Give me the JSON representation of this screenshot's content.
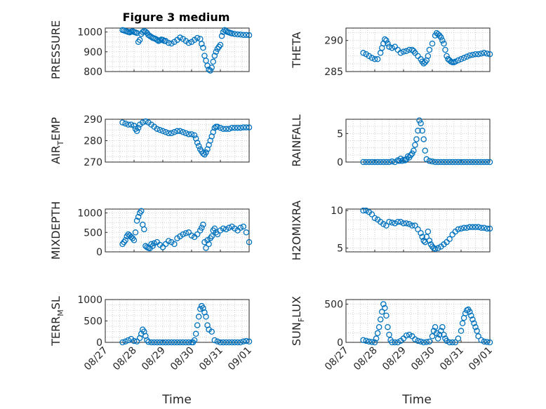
{
  "chart_data": [
    {
      "type": "scatter",
      "id": "pressure",
      "title": "Figure 3 medium",
      "ylabel": "PRESSURE",
      "ylim": [
        800,
        1020
      ],
      "yticks": [
        800,
        900,
        1000
      ],
      "x": [
        0.6,
        0.65,
        0.7,
        0.75,
        0.8,
        0.85,
        0.9,
        0.95,
        1.0,
        1.05,
        1.1,
        1.15,
        1.2,
        1.25,
        1.3,
        1.35,
        1.4,
        1.45,
        1.5,
        1.55,
        1.6,
        1.65,
        1.7,
        1.75,
        1.8,
        1.85,
        1.9,
        1.95,
        2.0,
        2.05,
        2.1,
        2.2,
        2.3,
        2.4,
        2.5,
        2.6,
        2.7,
        2.8,
        2.9,
        3.0,
        3.1,
        3.2,
        3.3,
        3.35,
        3.4,
        3.45,
        3.5,
        3.55,
        3.6,
        3.65,
        3.7,
        3.75,
        3.8,
        3.85,
        3.9,
        3.95,
        4.0,
        4.05,
        4.1,
        4.15,
        4.2,
        4.25,
        4.3,
        4.35,
        4.4,
        4.5,
        4.6,
        4.7,
        4.8,
        4.9,
        5.0
      ],
      "y": [
        1010,
        1008,
        1005,
        1003,
        1000,
        998,
        1002,
        1004,
        1000,
        998,
        995,
        950,
        960,
        990,
        1000,
        1005,
        1002,
        995,
        985,
        980,
        975,
        970,
        968,
        965,
        960,
        955,
        958,
        962,
        960,
        955,
        955,
        945,
        942,
        950,
        960,
        972,
        965,
        955,
        945,
        950,
        960,
        970,
        965,
        940,
        920,
        880,
        855,
        830,
        810,
        805,
        820,
        850,
        880,
        900,
        915,
        925,
        935,
        980,
        1000,
        1010,
        1005,
        1000,
        998,
        995,
        993,
        990,
        988,
        987,
        985,
        985,
        984
      ]
    },
    {
      "type": "scatter",
      "id": "theta",
      "ylabel": "THETA",
      "ylim": [
        285,
        292
      ],
      "yticks": [
        285,
        290
      ],
      "x": [
        0.6,
        0.7,
        0.8,
        0.9,
        1.0,
        1.1,
        1.2,
        1.25,
        1.3,
        1.35,
        1.4,
        1.45,
        1.5,
        1.6,
        1.7,
        1.8,
        1.9,
        2.0,
        2.1,
        2.2,
        2.3,
        2.35,
        2.4,
        2.5,
        2.6,
        2.65,
        2.7,
        2.75,
        2.8,
        2.85,
        2.9,
        3.0,
        3.1,
        3.15,
        3.2,
        3.25,
        3.3,
        3.35,
        3.4,
        3.45,
        3.5,
        3.55,
        3.6,
        3.65,
        3.7,
        3.75,
        3.8,
        3.9,
        4.0,
        4.1,
        4.2,
        4.3,
        4.4,
        4.5,
        4.6,
        4.7,
        4.8,
        4.9,
        5.0
      ],
      "y": [
        288.0,
        287.8,
        287.5,
        287.2,
        287.0,
        287.0,
        288.0,
        288.8,
        289.5,
        290.2,
        290.0,
        289.5,
        289.0,
        288.8,
        289.0,
        288.5,
        288.0,
        288.2,
        288.3,
        288.5,
        288.5,
        288.3,
        288.0,
        287.5,
        287.0,
        286.6,
        286.3,
        286.5,
        286.8,
        287.5,
        288.5,
        289.5,
        290.8,
        291.2,
        291.0,
        290.8,
        290.5,
        290.0,
        289.5,
        288.5,
        287.5,
        287.0,
        286.8,
        286.6,
        286.5,
        286.5,
        286.6,
        286.8,
        287.0,
        287.2,
        287.4,
        287.6,
        287.7,
        287.8,
        287.8,
        287.9,
        288.0,
        287.9,
        287.8
      ]
    },
    {
      "type": "scatter",
      "id": "air_temp",
      "ylabel": "AIR_TEMP",
      "ylim": [
        270,
        290
      ],
      "yticks": [
        270,
        280,
        290
      ],
      "x": [
        0.6,
        0.7,
        0.8,
        0.9,
        1.0,
        1.05,
        1.1,
        1.15,
        1.2,
        1.3,
        1.4,
        1.5,
        1.6,
        1.7,
        1.8,
        1.9,
        2.0,
        2.1,
        2.2,
        2.3,
        2.4,
        2.5,
        2.6,
        2.7,
        2.8,
        2.9,
        3.0,
        3.1,
        3.15,
        3.2,
        3.25,
        3.3,
        3.35,
        3.4,
        3.45,
        3.5,
        3.55,
        3.6,
        3.65,
        3.7,
        3.75,
        3.8,
        3.85,
        3.9,
        4.0,
        4.1,
        4.2,
        4.3,
        4.4,
        4.5,
        4.6,
        4.7,
        4.8,
        4.9,
        5.0
      ],
      "y": [
        288.5,
        288.0,
        287.5,
        287.5,
        287.0,
        285.5,
        284.5,
        286.0,
        287.5,
        288.5,
        289.0,
        288.5,
        287.5,
        286.5,
        285.5,
        285.0,
        284.5,
        284.0,
        283.5,
        283.5,
        284.0,
        284.5,
        284.5,
        284.0,
        283.5,
        283.0,
        283.0,
        282.5,
        281.0,
        279.0,
        277.5,
        276.0,
        275.0,
        274.0,
        273.5,
        274.5,
        276.0,
        278.0,
        280.0,
        282.0,
        284.0,
        286.0,
        286.5,
        286.5,
        286.0,
        285.5,
        285.5,
        285.5,
        286.0,
        286.0,
        286.0,
        286.0,
        286.2,
        286.2,
        286.2
      ]
    },
    {
      "type": "scatter",
      "id": "rainfall",
      "ylabel": "RAINFALL",
      "ylim": [
        0,
        7.5
      ],
      "yticks": [
        0,
        5
      ],
      "x": [
        0.6,
        0.7,
        0.8,
        0.9,
        1.0,
        1.1,
        1.2,
        1.3,
        1.4,
        1.5,
        1.6,
        1.7,
        1.8,
        1.85,
        1.9,
        1.95,
        2.0,
        2.05,
        2.1,
        2.15,
        2.2,
        2.25,
        2.3,
        2.35,
        2.4,
        2.45,
        2.5,
        2.55,
        2.6,
        2.65,
        2.7,
        2.75,
        2.8,
        2.9,
        3.0,
        3.1,
        3.2,
        3.3,
        3.4,
        3.5,
        3.6,
        3.7,
        3.8,
        3.9,
        4.0,
        4.1,
        4.2,
        4.3,
        4.4,
        4.5,
        4.6,
        4.7,
        4.8,
        4.9,
        5.0
      ],
      "y": [
        0,
        0,
        0,
        0,
        0,
        0,
        0,
        0,
        0,
        0,
        0.1,
        0,
        0.3,
        0.2,
        0.6,
        0.2,
        0.4,
        0.3,
        0.5,
        1.0,
        0.8,
        1.2,
        1.5,
        2.0,
        3.0,
        4.0,
        5.5,
        7.3,
        6.8,
        5.5,
        4.0,
        2.0,
        0.5,
        0.2,
        0.1,
        0,
        0,
        0,
        0,
        0,
        0,
        0,
        0,
        0,
        0,
        0,
        0,
        0,
        0,
        0,
        0,
        0,
        0,
        0,
        0
      ]
    },
    {
      "type": "scatter",
      "id": "mixdepth",
      "ylabel": "MIXDEPTH",
      "ylim": [
        0,
        1100
      ],
      "yticks": [
        0,
        500,
        1000
      ],
      "x": [
        0.6,
        0.65,
        0.7,
        0.75,
        0.8,
        0.85,
        0.9,
        0.95,
        1.0,
        1.05,
        1.1,
        1.15,
        1.2,
        1.25,
        1.3,
        1.35,
        1.4,
        1.45,
        1.5,
        1.55,
        1.6,
        1.65,
        1.7,
        1.8,
        1.9,
        2.0,
        2.1,
        2.2,
        2.3,
        2.4,
        2.5,
        2.6,
        2.7,
        2.8,
        2.9,
        3.0,
        3.1,
        3.2,
        3.3,
        3.35,
        3.4,
        3.45,
        3.5,
        3.55,
        3.6,
        3.65,
        3.7,
        3.75,
        3.8,
        3.85,
        3.9,
        4.0,
        4.1,
        4.2,
        4.3,
        4.4,
        4.5,
        4.6,
        4.7,
        4.8,
        4.9,
        5.0
      ],
      "y": [
        200,
        250,
        300,
        400,
        450,
        420,
        380,
        350,
        300,
        500,
        800,
        900,
        1000,
        1050,
        700,
        580,
        150,
        120,
        100,
        90,
        200,
        150,
        220,
        250,
        180,
        120,
        200,
        280,
        250,
        200,
        350,
        400,
        450,
        480,
        500,
        420,
        380,
        450,
        550,
        620,
        700,
        250,
        100,
        300,
        200,
        350,
        400,
        550,
        600,
        500,
        450,
        550,
        600,
        580,
        620,
        650,
        600,
        550,
        620,
        650,
        500,
        250
      ]
    },
    {
      "type": "scatter",
      "id": "h2omixra",
      "ylabel": "H2OMIXRA",
      "ylim": [
        4.5,
        10.2
      ],
      "yticks": [
        5,
        10
      ],
      "x": [
        0.6,
        0.7,
        0.8,
        0.9,
        1.0,
        1.1,
        1.2,
        1.3,
        1.4,
        1.5,
        1.6,
        1.7,
        1.8,
        1.9,
        2.0,
        2.1,
        2.2,
        2.3,
        2.4,
        2.5,
        2.6,
        2.65,
        2.7,
        2.75,
        2.8,
        2.85,
        2.9,
        2.95,
        3.0,
        3.05,
        3.1,
        3.2,
        3.3,
        3.4,
        3.5,
        3.6,
        3.7,
        3.8,
        3.9,
        4.0,
        4.1,
        4.2,
        4.3,
        4.4,
        4.5,
        4.6,
        4.7,
        4.8,
        4.9,
        5.0
      ],
      "y": [
        10.0,
        10.0,
        9.8,
        9.5,
        9.0,
        8.8,
        8.5,
        8.2,
        8.0,
        8.5,
        8.4,
        8.3,
        8.5,
        8.5,
        8.3,
        8.3,
        8.2,
        8.0,
        8.0,
        7.5,
        7.0,
        6.5,
        6.0,
        5.8,
        6.5,
        7.2,
        6.0,
        5.5,
        5.2,
        5.0,
        4.9,
        5.0,
        5.2,
        5.5,
        5.8,
        6.2,
        6.8,
        7.2,
        7.5,
        7.6,
        7.7,
        7.7,
        7.8,
        7.8,
        7.8,
        7.8,
        7.7,
        7.7,
        7.6,
        7.6
      ]
    },
    {
      "type": "scatter",
      "id": "terr_msl",
      "ylabel": "TERR_MSL",
      "ylim": [
        0,
        1000
      ],
      "yticks": [
        0,
        500,
        1000
      ],
      "x": [
        0.6,
        0.7,
        0.8,
        0.9,
        1.0,
        1.1,
        1.2,
        1.25,
        1.3,
        1.35,
        1.4,
        1.45,
        1.5,
        1.6,
        1.7,
        1.8,
        1.9,
        2.0,
        2.1,
        2.2,
        2.3,
        2.4,
        2.5,
        2.6,
        2.7,
        2.8,
        2.9,
        3.0,
        3.05,
        3.1,
        3.15,
        3.2,
        3.25,
        3.3,
        3.35,
        3.4,
        3.45,
        3.5,
        3.55,
        3.6,
        3.7,
        3.8,
        3.9,
        4.0,
        4.1,
        4.2,
        4.3,
        4.4,
        4.5,
        4.6,
        4.7,
        4.8,
        4.9,
        5.0
      ],
      "y": [
        0,
        20,
        50,
        80,
        30,
        20,
        100,
        200,
        300,
        250,
        150,
        50,
        10,
        0,
        0,
        0,
        0,
        0,
        0,
        0,
        0,
        0,
        0,
        0,
        0,
        0,
        0,
        0,
        0,
        50,
        200,
        400,
        600,
        780,
        850,
        800,
        700,
        600,
        400,
        300,
        250,
        50,
        20,
        0,
        0,
        0,
        0,
        0,
        0,
        0,
        0,
        20,
        30,
        20
      ]
    },
    {
      "type": "scatter",
      "id": "sun_flux",
      "ylabel": "SUN_FLUX",
      "ylim": [
        0,
        560
      ],
      "yticks": [
        0,
        500
      ],
      "x": [
        0.6,
        0.7,
        0.8,
        0.9,
        1.0,
        1.05,
        1.1,
        1.15,
        1.2,
        1.25,
        1.3,
        1.35,
        1.4,
        1.45,
        1.5,
        1.55,
        1.6,
        1.7,
        1.8,
        1.9,
        2.0,
        2.1,
        2.2,
        2.3,
        2.4,
        2.5,
        2.6,
        2.7,
        2.8,
        2.9,
        3.0,
        3.05,
        3.1,
        3.15,
        3.2,
        3.25,
        3.3,
        3.35,
        3.4,
        3.45,
        3.5,
        3.6,
        3.7,
        3.8,
        3.9,
        4.0,
        4.05,
        4.1,
        4.15,
        4.2,
        4.25,
        4.3,
        4.35,
        4.4,
        4.45,
        4.5,
        4.55,
        4.6,
        4.7,
        4.8,
        4.9,
        5.0
      ],
      "y": [
        30,
        20,
        10,
        5,
        0,
        50,
        120,
        200,
        300,
        400,
        500,
        450,
        350,
        200,
        100,
        30,
        0,
        0,
        0,
        20,
        50,
        90,
        100,
        80,
        40,
        20,
        10,
        0,
        5,
        10,
        80,
        150,
        200,
        120,
        50,
        100,
        150,
        200,
        100,
        50,
        20,
        0,
        0,
        0,
        50,
        150,
        250,
        320,
        380,
        420,
        430,
        400,
        350,
        300,
        250,
        200,
        150,
        80,
        30,
        10,
        5,
        0
      ]
    }
  ],
  "date_labels": [
    "08/27",
    "08/28",
    "08/29",
    "08/30",
    "08/31",
    "09/01"
  ],
  "xlabel": "Time",
  "figure_title": "Figure 3 medium",
  "colors": {
    "marker": "#0072BD",
    "axis": "#262626",
    "grid": "#cfcfcf"
  }
}
